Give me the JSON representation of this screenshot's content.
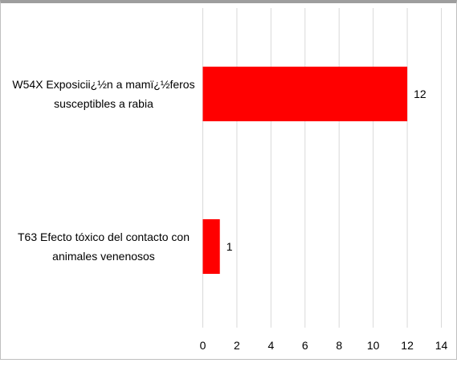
{
  "chart_data": {
    "type": "bar",
    "orientation": "horizontal",
    "categories": [
      "W54X Exposicii¿½n a mamï¿½feros susceptibles a rabia",
      "T63 Efecto tóxico del contacto con animales venenosos"
    ],
    "category_lines": [
      [
        "W54X Exposicii¿½n a mamï¿½feros",
        "susceptibles a rabia"
      ],
      [
        "T63 Efecto tóxico del contacto con",
        "animales venenosos"
      ]
    ],
    "values": [
      12,
      1
    ],
    "data_labels": [
      "12",
      "1"
    ],
    "xlim": [
      0,
      14
    ],
    "x_ticks": [
      0,
      2,
      4,
      6,
      8,
      10,
      12,
      14
    ],
    "x_tick_labels": [
      "0",
      "2",
      "4",
      "6",
      "8",
      "10",
      "12",
      "14"
    ],
    "grid": "vertical",
    "legend": "none",
    "bar_color": "#ff0000",
    "grid_color": "#d9d9d9",
    "text_color": "#000000"
  }
}
